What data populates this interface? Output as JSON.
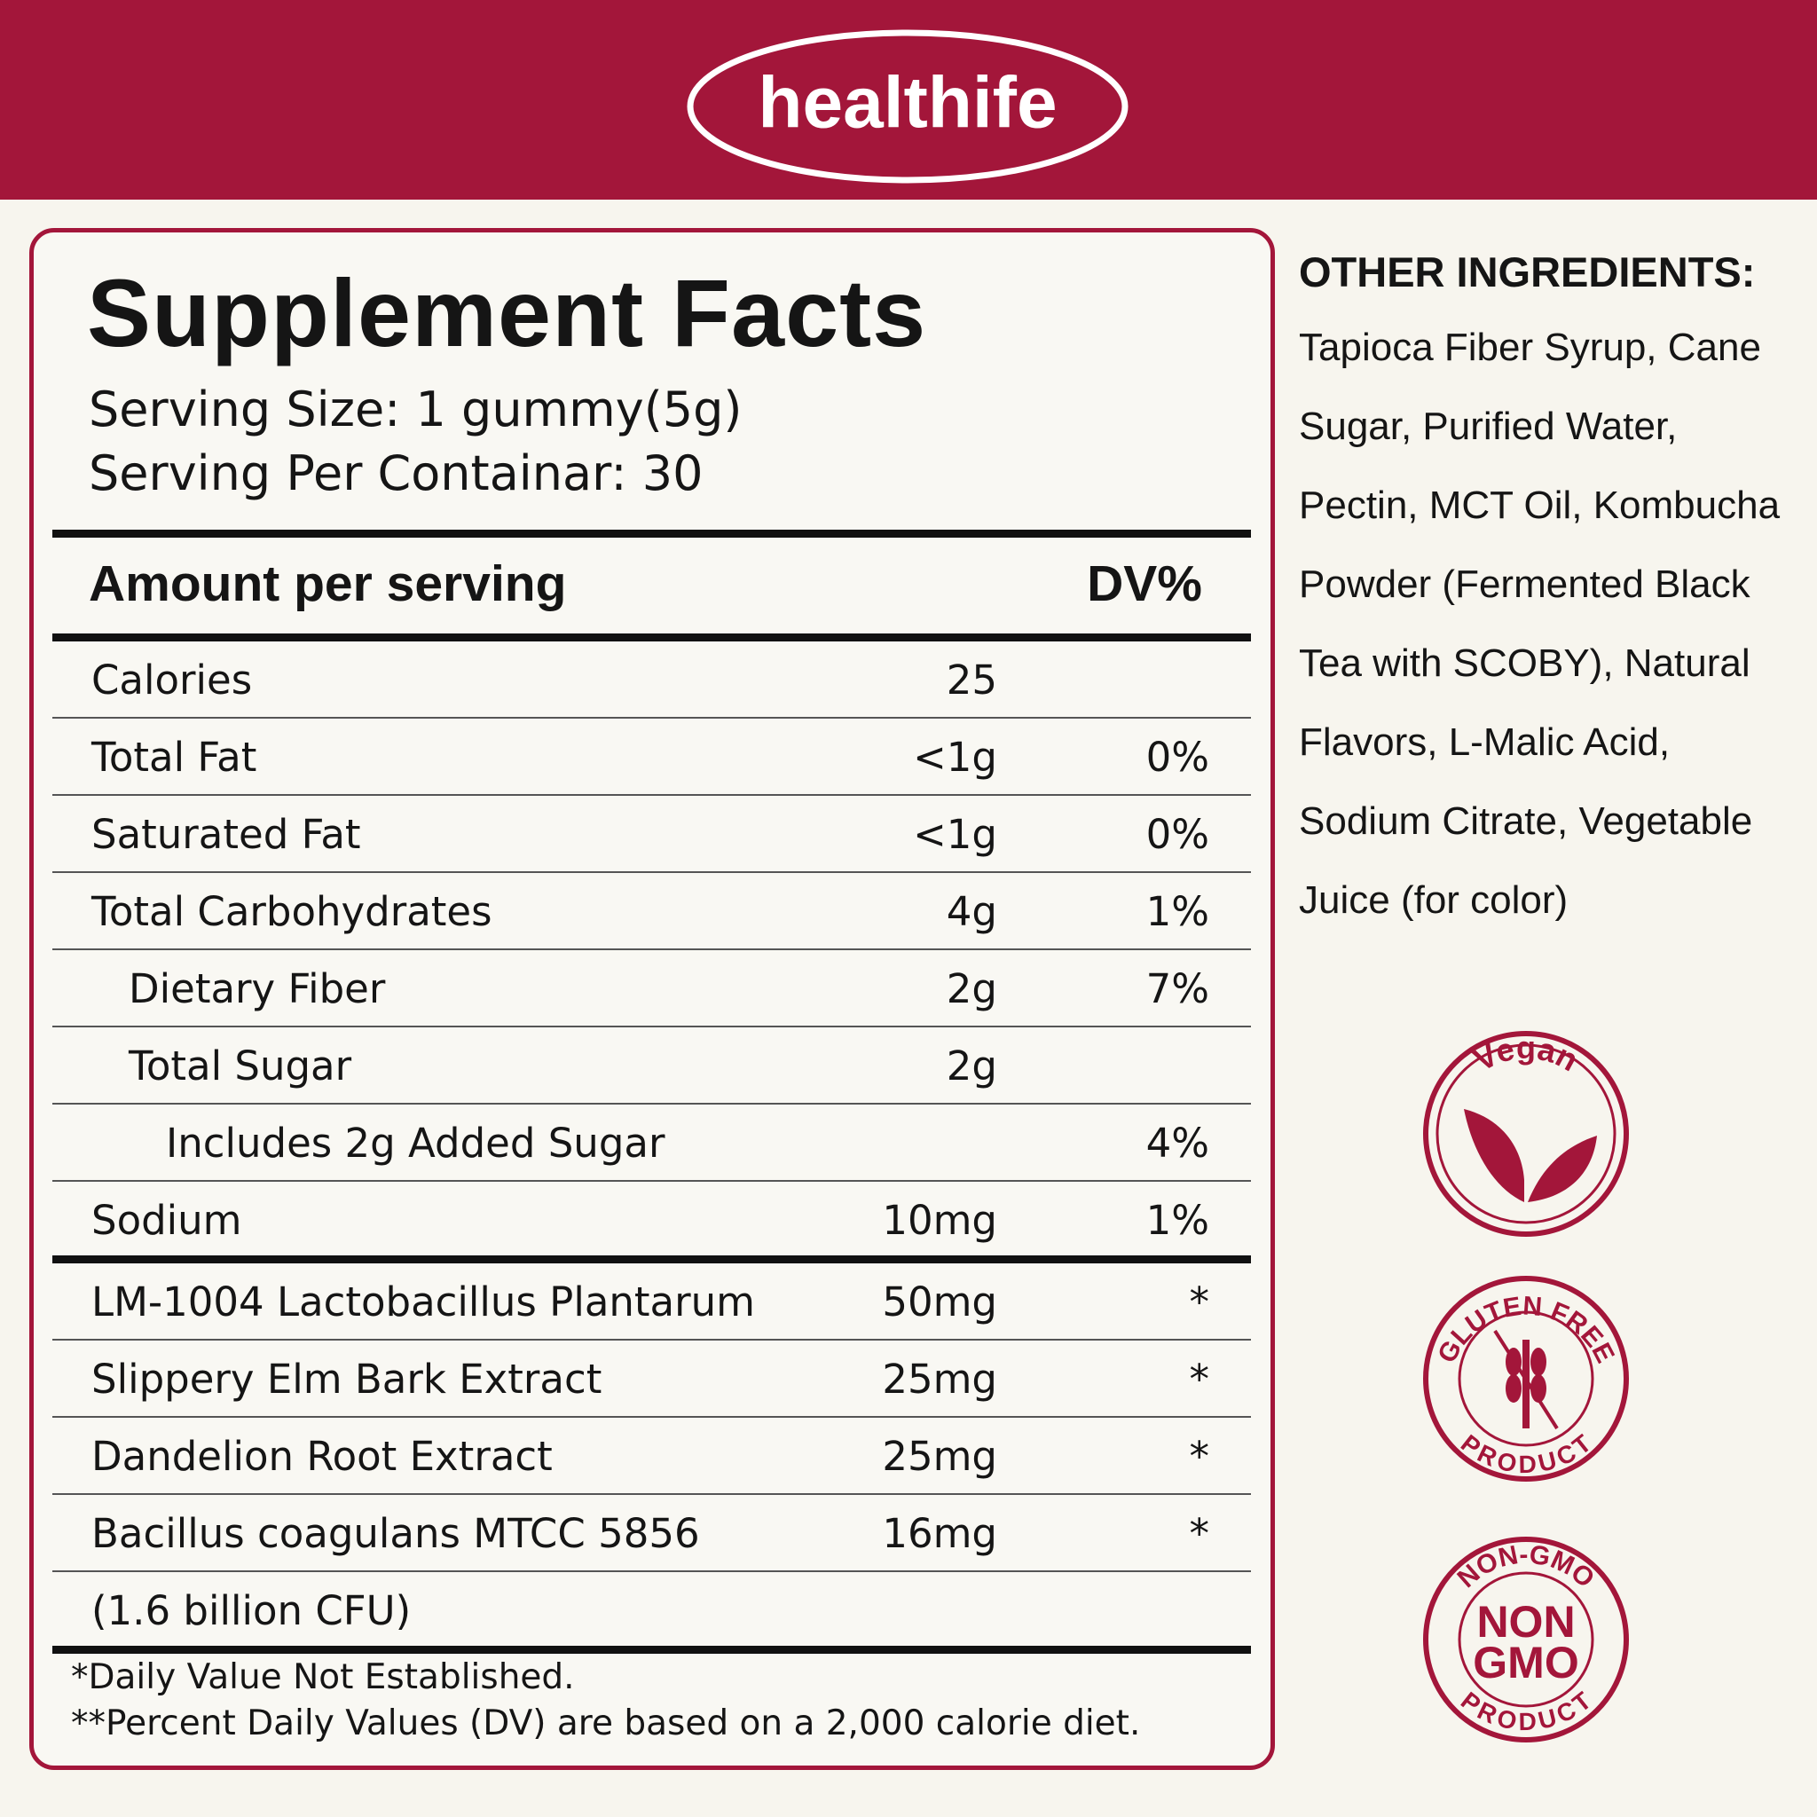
{
  "header": {
    "logo": "healthife"
  },
  "facts": {
    "title": "Supplement Facts",
    "serving_size": "Serving Size: 1 gummy(5g)",
    "servings_per_container": "Serving Per Containar: 30",
    "column_amount": "Amount per serving",
    "column_dv": "DV%",
    "nutrients": [
      {
        "name": "Calories",
        "amount": "25"
      },
      {
        "name": "Total Fat",
        "amount": "<1g",
        "dv": "0%"
      },
      {
        "name": "Saturated Fat",
        "amount": "<1g",
        "dv": "0%"
      },
      {
        "name": "Total Carbohydrates",
        "amount": "4g",
        "dv": "1%"
      },
      {
        "name": "Dietary Fiber",
        "amount": "2g",
        "dv": "7%"
      },
      {
        "name": "Total Sugar",
        "amount": "2g"
      },
      {
        "name": "Includes 2g Added Sugar",
        "dv": "4%"
      },
      {
        "name": "Sodium",
        "amount": "10mg",
        "dv": "1%"
      }
    ],
    "ingredients": [
      {
        "name": "LM-1004 Lactobacillus Plantarum",
        "amount": "50mg",
        "dv": "*"
      },
      {
        "name": "Slippery Elm Bark Extract",
        "amount": "25mg",
        "dv": "*"
      },
      {
        "name": "Dandelion Root Extract",
        "amount": "25mg",
        "dv": "*"
      },
      {
        "name": "Bacillus coagulans MTCC 5856",
        "amount": "16mg",
        "dv": "*"
      },
      {
        "name": "(1.6 billion CFU)"
      }
    ],
    "footnotes": [
      "*Daily Value Not Established.",
      "**Percent Daily Values (DV) are based on a 2,000 calorie diet."
    ]
  },
  "other_ingredients": {
    "title": "OTHER INGREDIENTS:",
    "text": "Tapioca Fiber Syrup, Cane Sugar, Purified Water, Pectin, MCT Oil, Kombucha Powder (Fermented Black Tea with SCOBY), Natural Flavors, L-Malic Acid, Sodium Citrate, Vegetable Juice (for color)"
  },
  "badges": {
    "vegan": "Vegan",
    "gluten_free": {
      "top": "GLUTEN FREE",
      "bottom": "PRODUCT"
    },
    "non_gmo": {
      "top": "NON-GMO",
      "line1": "NON",
      "line2": "GMO",
      "bottom": "PRODUCT"
    }
  }
}
